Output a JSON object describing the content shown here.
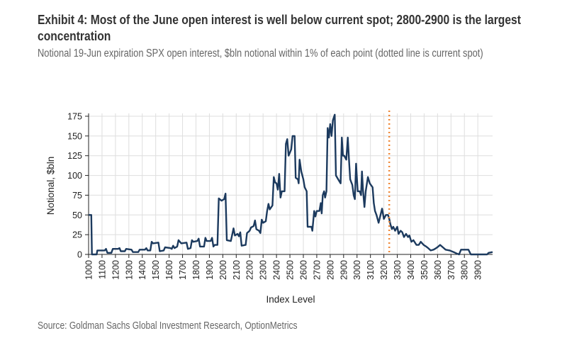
{
  "header": {
    "title": "Exhibit 4: Most of the June open interest is well below current spot; 2800-2900 is the largest concentration",
    "subtitle": "Notional 19-Jun expiration SPX open interest, $bln notional within 1% of each point (dotted line is current spot)"
  },
  "footer": {
    "source": "Source: Goldman Sachs Global Investment Research, OptionMetrics"
  },
  "chart_data": {
    "type": "line",
    "title": "",
    "xlabel": "Index Level",
    "ylabel": "Notional, $bln",
    "xlim": [
      1000,
      4010
    ],
    "ylim": [
      0,
      175
    ],
    "xticks": [
      1000,
      1100,
      1200,
      1300,
      1400,
      1500,
      1600,
      1700,
      1800,
      1900,
      2000,
      2100,
      2200,
      2300,
      2400,
      2500,
      2600,
      2700,
      2800,
      2900,
      3000,
      3100,
      3200,
      3300,
      3400,
      3500,
      3600,
      3700,
      3800,
      3900
    ],
    "yticks": [
      0,
      25,
      50,
      75,
      100,
      125,
      150,
      175
    ],
    "grid": true,
    "spot_line": {
      "x": 3240,
      "style": "dotted"
    },
    "colors": {
      "series": "#1c3a5e",
      "spot": "#f0893a",
      "grid": "#dedede"
    },
    "points": [
      [
        1000,
        50
      ],
      [
        1020,
        50
      ],
      [
        1025,
        0
      ],
      [
        1060,
        0
      ],
      [
        1065,
        5
      ],
      [
        1120,
        5
      ],
      [
        1130,
        7
      ],
      [
        1140,
        2
      ],
      [
        1170,
        2
      ],
      [
        1180,
        7
      ],
      [
        1220,
        7
      ],
      [
        1230,
        8
      ],
      [
        1240,
        4
      ],
      [
        1270,
        4
      ],
      [
        1280,
        7
      ],
      [
        1320,
        6
      ],
      [
        1330,
        3
      ],
      [
        1370,
        3
      ],
      [
        1380,
        6
      ],
      [
        1420,
        6
      ],
      [
        1430,
        8
      ],
      [
        1440,
        5
      ],
      [
        1460,
        5
      ],
      [
        1470,
        16
      ],
      [
        1480,
        14
      ],
      [
        1520,
        15
      ],
      [
        1530,
        4
      ],
      [
        1560,
        5
      ],
      [
        1570,
        9
      ],
      [
        1610,
        8
      ],
      [
        1620,
        7
      ],
      [
        1630,
        11
      ],
      [
        1640,
        8
      ],
      [
        1660,
        10
      ],
      [
        1670,
        18
      ],
      [
        1690,
        14
      ],
      [
        1730,
        15
      ],
      [
        1740,
        7
      ],
      [
        1760,
        8
      ],
      [
        1770,
        18
      ],
      [
        1780,
        16
      ],
      [
        1810,
        17
      ],
      [
        1820,
        20
      ],
      [
        1830,
        10
      ],
      [
        1860,
        10
      ],
      [
        1870,
        21
      ],
      [
        1880,
        17
      ],
      [
        1910,
        17
      ],
      [
        1920,
        21
      ],
      [
        1930,
        10
      ],
      [
        1940,
        12
      ],
      [
        1960,
        12
      ],
      [
        1970,
        71
      ],
      [
        1990,
        68
      ],
      [
        2010,
        70
      ],
      [
        2020,
        77
      ],
      [
        2030,
        18
      ],
      [
        2060,
        17
      ],
      [
        2080,
        33
      ],
      [
        2090,
        24
      ],
      [
        2110,
        26
      ],
      [
        2120,
        23
      ],
      [
        2130,
        28
      ],
      [
        2140,
        11
      ],
      [
        2170,
        12
      ],
      [
        2180,
        27
      ],
      [
        2200,
        30
      ],
      [
        2210,
        34
      ],
      [
        2230,
        36
      ],
      [
        2240,
        43
      ],
      [
        2250,
        32
      ],
      [
        2270,
        30
      ],
      [
        2280,
        27
      ],
      [
        2290,
        44
      ],
      [
        2300,
        40
      ],
      [
        2320,
        42
      ],
      [
        2330,
        55
      ],
      [
        2340,
        64
      ],
      [
        2350,
        57
      ],
      [
        2370,
        62
      ],
      [
        2380,
        98
      ],
      [
        2390,
        91
      ],
      [
        2400,
        90
      ],
      [
        2410,
        82
      ],
      [
        2420,
        102
      ],
      [
        2430,
        72
      ],
      [
        2440,
        80
      ],
      [
        2460,
        80
      ],
      [
        2470,
        140
      ],
      [
        2480,
        146
      ],
      [
        2490,
        125
      ],
      [
        2510,
        133
      ],
      [
        2520,
        150
      ],
      [
        2535,
        150
      ],
      [
        2543,
        97
      ],
      [
        2560,
        95
      ],
      [
        2565,
        90
      ],
      [
        2572,
        120
      ],
      [
        2585,
        105
      ],
      [
        2600,
        95
      ],
      [
        2610,
        85
      ],
      [
        2625,
        80
      ],
      [
        2632,
        35
      ],
      [
        2660,
        35
      ],
      [
        2667,
        30
      ],
      [
        2681,
        55
      ],
      [
        2690,
        48
      ],
      [
        2700,
        55
      ],
      [
        2720,
        55
      ],
      [
        2730,
        65
      ],
      [
        2737,
        52
      ],
      [
        2745,
        75
      ],
      [
        2755,
        80
      ],
      [
        2762,
        72
      ],
      [
        2772,
        80
      ],
      [
        2781,
        160
      ],
      [
        2790,
        148
      ],
      [
        2800,
        165
      ],
      [
        2810,
        150
      ],
      [
        2820,
        170
      ],
      [
        2834,
        177
      ],
      [
        2843,
        100
      ],
      [
        2860,
        95
      ],
      [
        2878,
        90
      ],
      [
        2887,
        148
      ],
      [
        2895,
        125
      ],
      [
        2905,
        125
      ],
      [
        2920,
        120
      ],
      [
        2931,
        148
      ],
      [
        2940,
        120
      ],
      [
        2949,
        95
      ],
      [
        2965,
        88
      ],
      [
        2975,
        75
      ],
      [
        2984,
        70
      ],
      [
        2993,
        115
      ],
      [
        3005,
        80
      ],
      [
        3020,
        80
      ],
      [
        3030,
        75
      ],
      [
        3037,
        105
      ],
      [
        3045,
        80
      ],
      [
        3055,
        60
      ],
      [
        3065,
        80
      ],
      [
        3081,
        98
      ],
      [
        3095,
        90
      ],
      [
        3116,
        85
      ],
      [
        3125,
        65
      ],
      [
        3134,
        55
      ],
      [
        3145,
        50
      ],
      [
        3161,
        40
      ],
      [
        3175,
        50
      ],
      [
        3187,
        58
      ],
      [
        3200,
        45
      ],
      [
        3215,
        50
      ],
      [
        3231,
        50
      ],
      [
        3240,
        45
      ],
      [
        3249,
        38
      ],
      [
        3260,
        32
      ],
      [
        3270,
        35
      ],
      [
        3284,
        30
      ],
      [
        3300,
        35
      ],
      [
        3310,
        26
      ],
      [
        3325,
        30
      ],
      [
        3337,
        28
      ],
      [
        3350,
        22
      ],
      [
        3365,
        26
      ],
      [
        3380,
        22
      ],
      [
        3390,
        24
      ],
      [
        3405,
        16
      ],
      [
        3420,
        18
      ],
      [
        3443,
        12
      ],
      [
        3460,
        12
      ],
      [
        3475,
        16
      ],
      [
        3496,
        12
      ],
      [
        3515,
        10
      ],
      [
        3530,
        8
      ],
      [
        3549,
        5
      ],
      [
        3570,
        6
      ],
      [
        3590,
        8
      ],
      [
        3605,
        10
      ],
      [
        3619,
        12
      ],
      [
        3640,
        9
      ],
      [
        3660,
        6
      ],
      [
        3690,
        5
      ],
      [
        3720,
        3
      ],
      [
        3745,
        1
      ],
      [
        3760,
        0
      ],
      [
        3775,
        6
      ],
      [
        3830,
        6
      ],
      [
        3848,
        0
      ],
      [
        3970,
        0
      ],
      [
        3980,
        2
      ],
      [
        4010,
        3
      ]
    ]
  }
}
